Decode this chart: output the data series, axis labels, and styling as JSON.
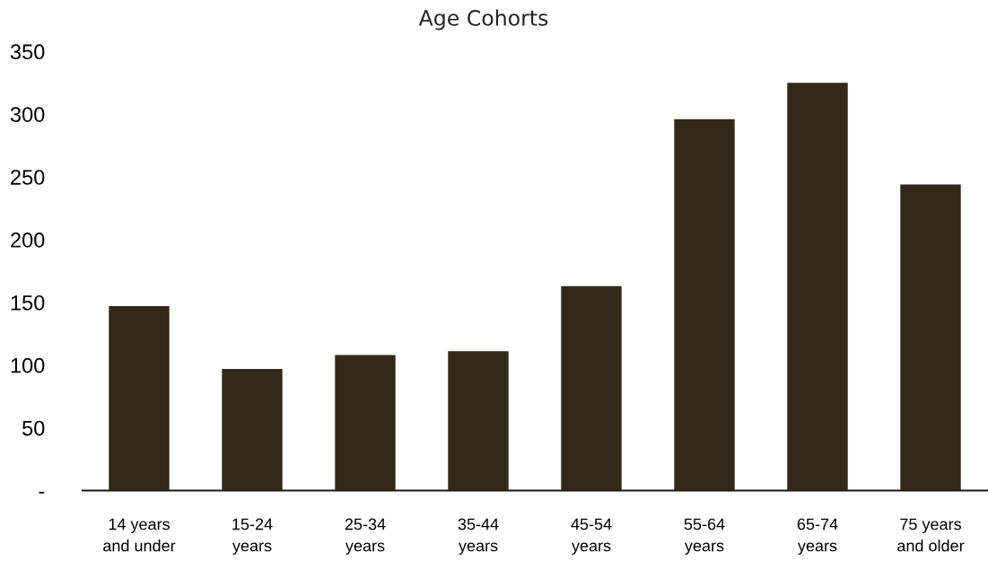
{
  "chart_data": {
    "type": "bar",
    "title": "Age Cohorts",
    "categories": [
      "14 years\nand under",
      "15-24\nyears",
      "25-34\nyears",
      "35-44\nyears",
      "45-54\nyears",
      "55-64\nyears",
      "65-74\nyears",
      "75 years\nand older"
    ],
    "values": [
      147,
      97,
      108,
      111,
      163,
      296,
      325,
      244
    ],
    "color": "#33291a",
    "ylim": [
      0,
      350
    ],
    "yticks": [
      {
        "value": 0,
        "label": "-"
      },
      50,
      100,
      150,
      200,
      250,
      300,
      350
    ],
    "grid": false
  }
}
